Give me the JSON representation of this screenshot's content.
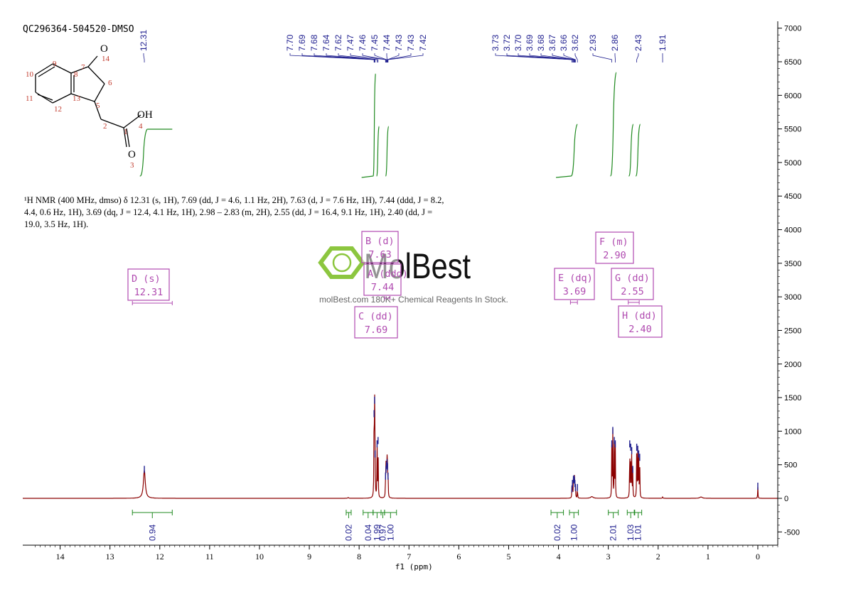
{
  "sample_id": "QC296364-504520-DMSO",
  "nmr_description": "¹H NMR (400 MHz, dmso) δ 12.31 (s, 1H), 7.69 (dd, J = 4.6, 1.1 Hz, 2H), 7.63 (d, J = 7.6 Hz, 1H), 7.44 (ddd, J = 8.2, 4.4, 0.6 Hz, 1H), 3.69 (dq, J = 12.4, 4.1 Hz, 1H), 2.98 – 2.83 (m, 2H), 2.55 (dd, J = 16.4, 9.1 Hz, 1H), 2.40 (dd, J = 19.0, 3.5 Hz, 1H).",
  "watermark": {
    "brand": "MolBest",
    "tagline": "molBest.com 180K+ Chemical Reagents In Stock.",
    "color": "#8cc63f"
  },
  "structure": {
    "atom_labels": [
      "O",
      "14",
      "7",
      "9",
      "8",
      "10",
      "6",
      "13",
      "11",
      "5",
      "12",
      "OH",
      "2",
      "4",
      "1",
      "O",
      "3"
    ]
  },
  "chart_data": {
    "type": "line",
    "title": "",
    "xlabel": "f1 (ppm)",
    "ylabel": "",
    "x_reversed": true,
    "xlim": [
      14.75,
      -0.4
    ],
    "ylim": [
      -700,
      7100
    ],
    "x_ticks": [
      "14",
      "13",
      "12",
      "11",
      "10",
      "9",
      "8",
      "7",
      "6",
      "5",
      "4",
      "3",
      "2",
      "1",
      "0"
    ],
    "y_ticks": [
      "7000",
      "6500",
      "6000",
      "5500",
      "5000",
      "4500",
      "4000",
      "3500",
      "3000",
      "2500",
      "2000",
      "1500",
      "1000",
      "500",
      "0",
      "-500"
    ],
    "peaks": [
      {
        "ppm": 12.31,
        "height": 420,
        "width": 0.022
      },
      {
        "ppm": 8.22,
        "height": 12,
        "width": 0.01
      },
      {
        "ppm": 7.7,
        "height": 1250,
        "width": 0.004
      },
      {
        "ppm": 7.69,
        "height": 1450,
        "width": 0.004
      },
      {
        "ppm": 7.68,
        "height": 650,
        "width": 0.004
      },
      {
        "ppm": 7.64,
        "height": 800,
        "width": 0.004
      },
      {
        "ppm": 7.62,
        "height": 850,
        "width": 0.004
      },
      {
        "ppm": 7.47,
        "height": 320,
        "width": 0.004
      },
      {
        "ppm": 7.46,
        "height": 420,
        "width": 0.004
      },
      {
        "ppm": 7.45,
        "height": 480,
        "width": 0.004
      },
      {
        "ppm": 7.44,
        "height": 520,
        "width": 0.004
      },
      {
        "ppm": 7.43,
        "height": 460,
        "width": 0.004
      },
      {
        "ppm": 7.42,
        "height": 320,
        "width": 0.004
      },
      {
        "ppm": 3.73,
        "height": 130,
        "width": 0.004
      },
      {
        "ppm": 3.72,
        "height": 210,
        "width": 0.004
      },
      {
        "ppm": 3.7,
        "height": 270,
        "width": 0.004
      },
      {
        "ppm": 3.69,
        "height": 280,
        "width": 0.004
      },
      {
        "ppm": 3.68,
        "height": 260,
        "width": 0.004
      },
      {
        "ppm": 3.67,
        "height": 210,
        "width": 0.004
      },
      {
        "ppm": 3.66,
        "height": 150,
        "width": 0.004
      },
      {
        "ppm": 3.62,
        "height": 150,
        "width": 0.004
      },
      {
        "ppm": 3.33,
        "height": 25,
        "width": 0.03
      },
      {
        "ppm": 2.93,
        "height": 800,
        "width": 0.004
      },
      {
        "ppm": 2.91,
        "height": 1000,
        "width": 0.004
      },
      {
        "ppm": 2.88,
        "height": 850,
        "width": 0.004
      },
      {
        "ppm": 2.86,
        "height": 800,
        "width": 0.004
      },
      {
        "ppm": 2.57,
        "height": 800,
        "width": 0.004
      },
      {
        "ppm": 2.55,
        "height": 750,
        "width": 0.004
      },
      {
        "ppm": 2.53,
        "height": 700,
        "width": 0.004
      },
      {
        "ppm": 2.51,
        "height": 420,
        "width": 0.004
      },
      {
        "ppm": 2.43,
        "height": 750,
        "width": 0.004
      },
      {
        "ppm": 2.41,
        "height": 720,
        "width": 0.004
      },
      {
        "ppm": 2.39,
        "height": 650,
        "width": 0.004
      },
      {
        "ppm": 2.37,
        "height": 600,
        "width": 0.004
      },
      {
        "ppm": 1.91,
        "height": 20,
        "width": 0.006
      },
      {
        "ppm": 1.14,
        "height": 20,
        "width": 0.03
      },
      {
        "ppm": 0.0,
        "height": 170,
        "width": 0.004
      }
    ],
    "peak_labels": [
      {
        "group": [
          12.31
        ],
        "labels": [
          "12.31"
        ]
      },
      {
        "group": [
          7.7,
          7.69,
          7.68,
          7.64,
          7.62,
          7.47,
          7.46,
          7.45,
          7.44,
          7.43,
          7.43,
          7.42
        ],
        "labels": [
          "7.70",
          "7.69",
          "7.68",
          "7.64",
          "7.62",
          "7.47",
          "7.46",
          "7.45",
          "7.44",
          "7.43",
          "7.43",
          "7.42"
        ]
      },
      {
        "group": [
          3.73,
          3.72,
          3.7,
          3.69,
          3.68,
          3.67,
          3.66,
          3.62
        ],
        "labels": [
          "3.73",
          "3.72",
          "3.70",
          "3.69",
          "3.68",
          "3.67",
          "3.66",
          "3.62"
        ]
      },
      {
        "group": [
          2.93,
          2.86
        ],
        "labels": [
          "2.93",
          "2.86"
        ]
      },
      {
        "group": [
          2.43
        ],
        "labels": [
          "2.43"
        ]
      },
      {
        "group": [
          1.91
        ],
        "labels": [
          "1.91"
        ]
      }
    ],
    "integrals": [
      {
        "from": 12.55,
        "to": 11.75,
        "value": "0.94"
      },
      {
        "from": 8.26,
        "to": 8.16,
        "value": "0.02"
      },
      {
        "from": 7.92,
        "to": 7.72,
        "value": "0.04"
      },
      {
        "from": 7.72,
        "to": 7.56,
        "value": "1.99"
      },
      {
        "from": 7.56,
        "to": 7.49,
        "value": "0.97"
      },
      {
        "from": 7.49,
        "to": 7.25,
        "value": "1.00"
      },
      {
        "from": 4.15,
        "to": 3.9,
        "value": "0.02"
      },
      {
        "from": 3.78,
        "to": 3.6,
        "value": "1.00"
      },
      {
        "from": 3.0,
        "to": 2.8,
        "value": "2.01"
      },
      {
        "from": 2.62,
        "to": 2.48,
        "value": "1.03"
      },
      {
        "from": 2.47,
        "to": 2.33,
        "value": "1.01"
      }
    ],
    "multiplets": [
      {
        "label": "D (s)",
        "shift": "12.31"
      },
      {
        "label": "B (d)",
        "shift": "7.63"
      },
      {
        "label": "A (ddd)",
        "shift": "7.44"
      },
      {
        "label": "C (dd)",
        "shift": "7.69"
      },
      {
        "label": "E (dq)",
        "shift": "3.69"
      },
      {
        "label": "F (m)",
        "shift": "2.90"
      },
      {
        "label": "G (dd)",
        "shift": "2.55"
      },
      {
        "label": "H (dd)",
        "shift": "2.40"
      }
    ],
    "colors": {
      "spectrum": "#8b0000",
      "integral": "#228b22",
      "peak_label": "#1f1f8f",
      "multiplet_box": "#b04ab0"
    }
  }
}
